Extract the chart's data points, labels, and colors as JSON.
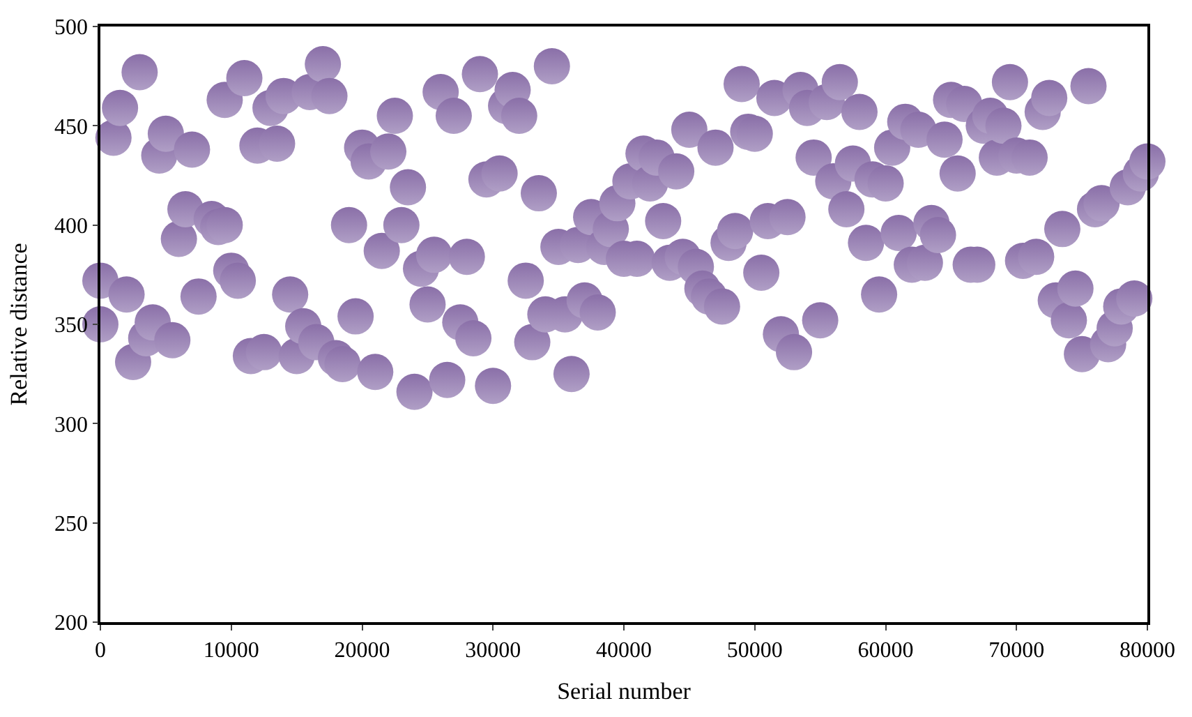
{
  "chart_data": {
    "type": "scatter",
    "xlabel": "Serial number",
    "ylabel": "Relative distance",
    "x": [
      0,
      0,
      1000,
      1500,
      2000,
      2500,
      3000,
      3500,
      4000,
      4500,
      5000,
      5500,
      6000,
      6500,
      7000,
      7500,
      8500,
      9000,
      9500,
      10000,
      10500,
      9500,
      11000,
      11500,
      12000,
      12500,
      13000,
      13500,
      14000,
      14500,
      15000,
      15500,
      16000,
      16500,
      17000,
      17500,
      18000,
      18500,
      19000,
      19500,
      20000,
      20500,
      21000,
      21500,
      22000,
      22500,
      23000,
      23500,
      24000,
      24500,
      25000,
      25500,
      26000,
      26500,
      27000,
      27500,
      28000,
      28500,
      29000,
      29500,
      30000,
      30500,
      31000,
      31500,
      32000,
      32500,
      33000,
      33500,
      34000,
      34500,
      35000,
      35500,
      36000,
      36500,
      37000,
      37500,
      38000,
      38500,
      39000,
      39500,
      40000,
      40500,
      41000,
      41500,
      42000,
      42500,
      43000,
      43500,
      44000,
      44500,
      45000,
      45500,
      46000,
      46500,
      47000,
      47500,
      48000,
      48500,
      49000,
      49500,
      50000,
      50500,
      51000,
      51500,
      52000,
      52500,
      53000,
      53500,
      54000,
      54500,
      55000,
      55500,
      56000,
      56500,
      57000,
      57500,
      58000,
      58500,
      59000,
      59500,
      60000,
      60500,
      61000,
      61500,
      62000,
      62500,
      63000,
      63500,
      64000,
      64500,
      65000,
      65500,
      66000,
      66500,
      67000,
      67500,
      68000,
      68500,
      69000,
      69500,
      70000,
      70500,
      71000,
      71500,
      72000,
      72500,
      73000,
      73500,
      74000,
      74500,
      75000,
      75500,
      76000,
      76500,
      77000,
      77500,
      78000,
      78500,
      79000,
      79500,
      80000
    ],
    "series": [
      {
        "color": "#8a6fa8",
        "values": [
          372,
          350,
          444,
          459,
          365,
          331,
          477,
          343,
          351,
          435,
          446,
          342,
          393,
          408,
          438,
          364,
          403,
          399,
          400,
          377,
          372,
          463,
          474,
          334,
          440,
          336,
          459,
          441,
          465,
          365,
          334,
          349,
          467,
          341,
          481,
          465,
          333,
          330,
          400,
          354,
          439,
          432,
          326,
          387,
          437,
          455,
          400,
          419,
          316,
          378,
          360,
          385,
          467,
          322,
          455,
          351,
          384,
          343,
          476,
          423,
          319,
          426,
          460,
          468,
          455,
          372,
          341,
          416,
          355,
          480,
          389,
          355,
          325,
          390,
          362,
          404,
          356,
          389,
          398,
          411,
          383,
          422,
          383,
          436,
          421,
          434,
          402,
          381,
          427,
          384,
          448,
          379,
          368,
          364,
          439,
          359,
          391,
          397,
          471,
          447,
          446,
          376,
          402,
          464,
          345,
          404,
          336,
          468,
          459,
          434,
          352,
          462,
          422,
          472,
          408,
          431,
          457,
          391,
          423,
          365,
          421,
          439,
          396,
          452,
          380,
          448,
          381,
          401,
          395,
          443,
          463,
          426,
          461,
          380,
          380,
          450,
          455,
          434,
          450,
          472,
          435,
          382,
          434,
          384,
          457,
          464,
          362,
          398,
          352,
          368,
          335,
          470,
          408,
          411,
          340,
          348,
          359,
          419,
          363,
          426,
          432
        ]
      }
    ],
    "xlim": [
      0,
      80000
    ],
    "ylim": [
      200,
      500
    ],
    "xticks": [
      0,
      10000,
      20000,
      30000,
      40000,
      50000,
      60000,
      70000,
      80000
    ],
    "yticks": [
      200,
      250,
      300,
      350,
      400,
      450,
      500
    ],
    "legend": false,
    "marker": "circle"
  }
}
